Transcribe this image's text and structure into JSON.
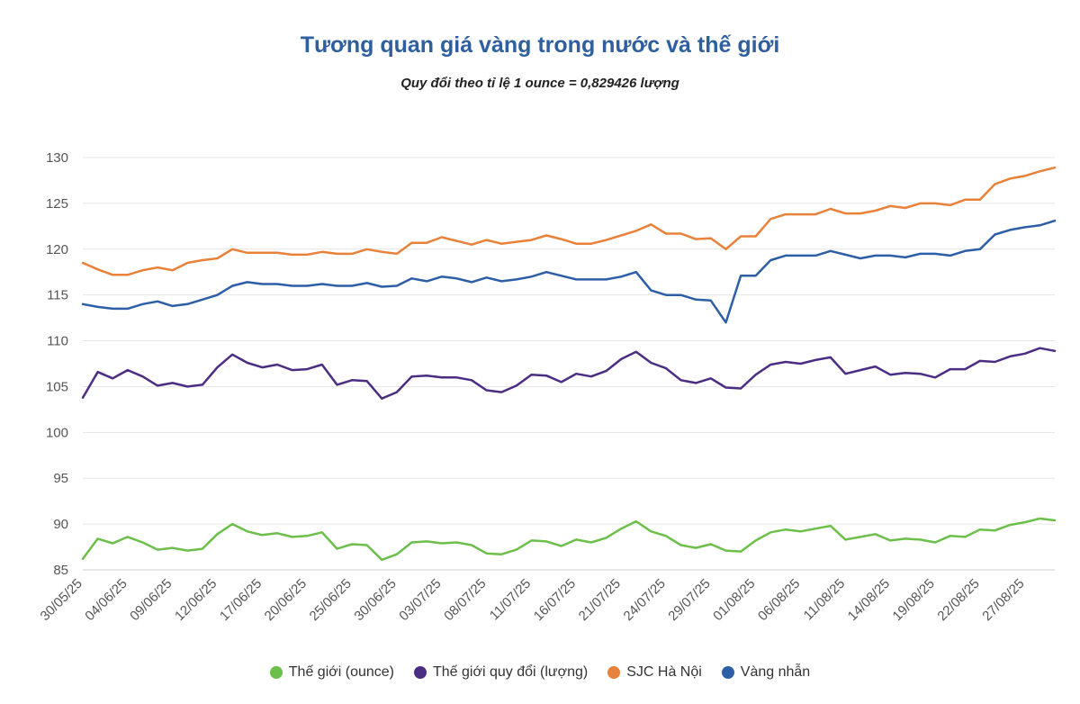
{
  "chart_data": {
    "type": "line",
    "title": "Tương quan giá vàng trong nước và thế giới",
    "subtitle": "Quy đổi theo tỉ lệ 1 ounce = 0,829426 lượng",
    "xlabel": "",
    "ylabel": "",
    "ylim": [
      85,
      130
    ],
    "yticks": [
      85,
      90,
      95,
      100,
      105,
      110,
      115,
      120,
      125,
      130
    ],
    "grid": true,
    "legend_position": "bottom",
    "x_tick_labels": [
      "30/05/25",
      "04/06/25",
      "09/06/25",
      "12/06/25",
      "17/06/25",
      "20/06/25",
      "25/06/25",
      "30/06/25",
      "03/07/25",
      "08/07/25",
      "11/07/25",
      "16/07/25",
      "21/07/25",
      "24/07/25",
      "29/07/25",
      "01/08/25",
      "06/08/25",
      "11/08/25",
      "14/08/25",
      "19/08/25",
      "22/08/25",
      "27/08/25"
    ],
    "series": [
      {
        "name": "Thế giới (ounce)",
        "color": "#6dbf4b",
        "values": [
          86.2,
          88.4,
          87.9,
          88.6,
          88.0,
          87.2,
          87.4,
          87.1,
          87.3,
          88.9,
          90.0,
          89.2,
          88.8,
          89.0,
          88.6,
          88.7,
          89.1,
          87.3,
          87.8,
          87.7,
          86.1,
          86.7,
          88.0,
          88.1,
          87.9,
          88.0,
          87.7,
          86.8,
          86.7,
          87.2,
          88.2,
          88.1,
          87.6,
          88.3,
          88.0,
          88.5,
          89.5,
          90.3,
          89.2,
          88.7,
          87.7,
          87.4,
          87.8,
          87.1,
          87.0,
          88.2,
          89.1,
          89.4,
          89.2,
          89.5,
          89.8,
          88.3,
          88.6,
          88.9,
          88.2,
          88.4,
          88.3,
          88.0,
          88.7,
          88.6,
          89.4,
          89.3,
          89.9,
          90.2,
          90.6,
          90.4
        ]
      },
      {
        "name": "Thế giới quy đổi (lượng)",
        "color": "#4b2e83",
        "values": [
          103.8,
          106.6,
          105.9,
          106.8,
          106.1,
          105.1,
          105.4,
          105.0,
          105.2,
          107.1,
          108.5,
          107.6,
          107.1,
          107.4,
          106.8,
          106.9,
          107.4,
          105.2,
          105.7,
          105.6,
          103.7,
          104.4,
          106.1,
          106.2,
          106.0,
          106.0,
          105.7,
          104.6,
          104.4,
          105.1,
          106.3,
          106.2,
          105.5,
          106.4,
          106.1,
          106.7,
          108.0,
          108.8,
          107.6,
          107.0,
          105.7,
          105.4,
          105.9,
          104.9,
          104.8,
          106.3,
          107.4,
          107.7,
          107.5,
          107.9,
          108.2,
          106.4,
          106.8,
          107.2,
          106.3,
          106.5,
          106.4,
          106.0,
          106.9,
          106.9,
          107.8,
          107.7,
          108.3,
          108.6,
          109.2,
          108.9
        ]
      },
      {
        "name": "SJC Hà Nội",
        "color": "#e8823a",
        "values": [
          118.5,
          117.8,
          117.2,
          117.2,
          117.7,
          118.0,
          117.7,
          118.5,
          118.8,
          119.0,
          120.0,
          119.6,
          119.6,
          119.6,
          119.4,
          119.4,
          119.7,
          119.5,
          119.5,
          120.0,
          119.7,
          119.5,
          120.7,
          120.7,
          121.3,
          120.9,
          120.5,
          121.0,
          120.6,
          120.8,
          121.0,
          121.5,
          121.1,
          120.6,
          120.6,
          121.0,
          121.5,
          122.0,
          122.7,
          121.7,
          121.7,
          121.1,
          121.2,
          120.0,
          121.4,
          121.4,
          123.3,
          123.8,
          123.8,
          123.8,
          124.4,
          123.9,
          123.9,
          124.2,
          124.7,
          124.5,
          125.0,
          125.0,
          124.8,
          125.4,
          125.4,
          127.1,
          127.7,
          128.0,
          128.5,
          128.9
        ]
      },
      {
        "name": "Vàng nhẫn",
        "color": "#2e5ea6",
        "values": [
          114.0,
          113.7,
          113.5,
          113.5,
          114.0,
          114.3,
          113.8,
          114.0,
          114.5,
          115.0,
          116.0,
          116.4,
          116.2,
          116.2,
          116.0,
          116.0,
          116.2,
          116.0,
          116.0,
          116.3,
          115.9,
          116.0,
          116.8,
          116.5,
          117.0,
          116.8,
          116.4,
          116.9,
          116.5,
          116.7,
          117.0,
          117.5,
          117.1,
          116.7,
          116.7,
          116.7,
          117.0,
          117.5,
          115.5,
          115.0,
          115.0,
          114.5,
          114.4,
          112.0,
          117.1,
          117.1,
          118.8,
          119.3,
          119.3,
          119.3,
          119.8,
          119.4,
          119.0,
          119.3,
          119.3,
          119.1,
          119.5,
          119.5,
          119.3,
          119.8,
          120.0,
          121.6,
          122.1,
          122.4,
          122.6,
          123.1
        ]
      }
    ]
  }
}
